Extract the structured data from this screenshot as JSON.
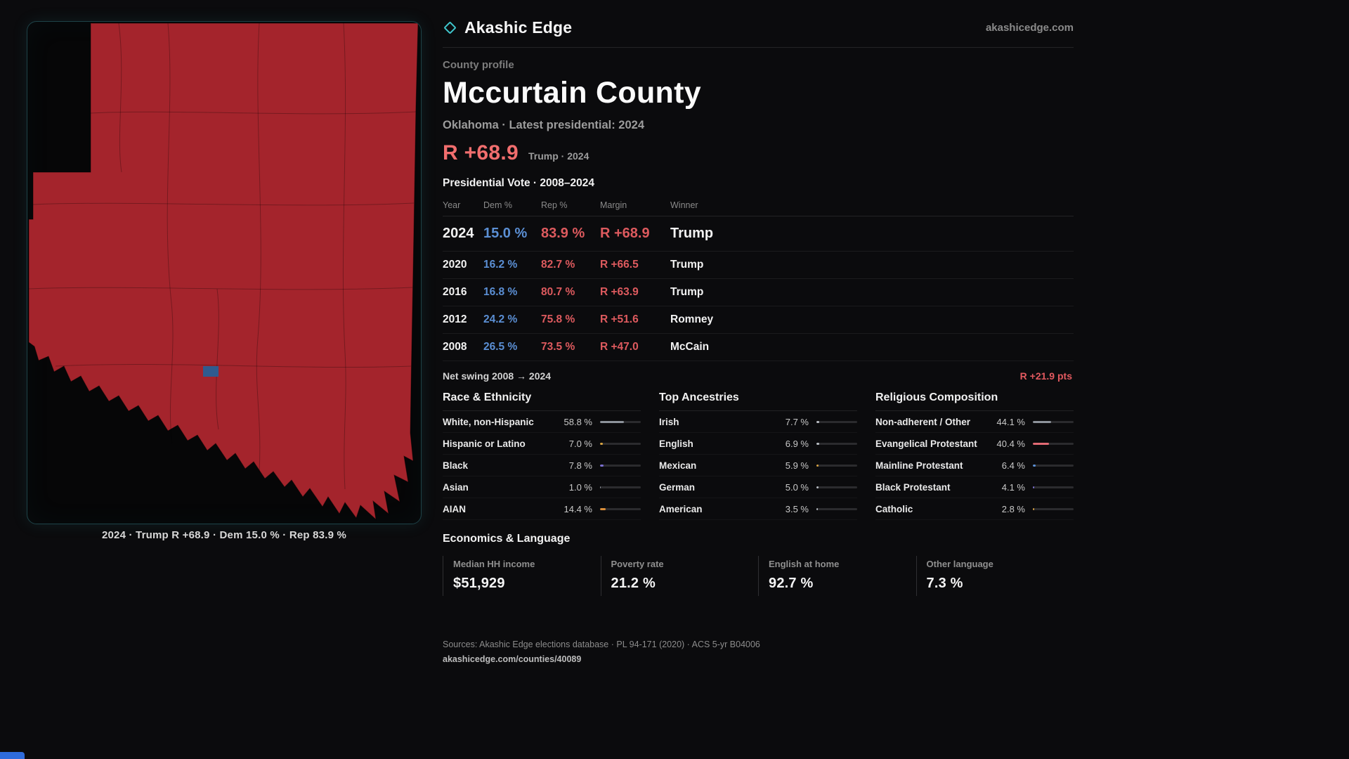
{
  "colors": {
    "accent_teal": "#3fc6cc",
    "dem_blue": "#5b8fd4",
    "rep_red": "#dd5a5e",
    "headline_red": "#f16e6e",
    "map_fill": "#a4242c",
    "map_highlight": "#2f5b8f",
    "corner_accent": "#2e6bdb"
  },
  "brand": {
    "name": "Akashic Edge",
    "domain": "akashicedge.com"
  },
  "map": {
    "fill_color": "#a4242c",
    "highlight_color": "#2f5b8f",
    "caption": "2024 · Trump R +68.9 · Dem 15.0 % · Rep 83.9 %"
  },
  "profile": {
    "eyebrow": "County profile",
    "title": "Mccurtain County",
    "subtitle": "Oklahoma · Latest presidential: 2024",
    "headline_margin": "R +68.9",
    "headline_note": "Trump · 2024"
  },
  "vote_table": {
    "title": "Presidential Vote · 2008–2024",
    "columns": {
      "year": "Year",
      "dem": "Dem %",
      "rep": "Rep %",
      "margin": "Margin",
      "winner": "Winner"
    },
    "rows": [
      {
        "year": "2024",
        "dem": "15.0 %",
        "rep": "83.9 %",
        "margin": "R +68.9",
        "winner": "Trump"
      },
      {
        "year": "2020",
        "dem": "16.2 %",
        "rep": "82.7 %",
        "margin": "R +66.5",
        "winner": "Trump"
      },
      {
        "year": "2016",
        "dem": "16.8 %",
        "rep": "80.7 %",
        "margin": "R +63.9",
        "winner": "Trump"
      },
      {
        "year": "2012",
        "dem": "24.2 %",
        "rep": "75.8 %",
        "margin": "R +51.6",
        "winner": "Romney"
      },
      {
        "year": "2008",
        "dem": "26.5 %",
        "rep": "73.5 %",
        "margin": "R +47.0",
        "winner": "McCain"
      }
    ],
    "net_swing_label": "Net swing 2008 → 2024",
    "net_swing_value": "R +21.9 pts"
  },
  "demographics": {
    "groups": [
      {
        "title": "Race & Ethnicity",
        "rows": [
          {
            "label": "White, non-Hispanic",
            "value": "58.8 %",
            "pct": 58.8,
            "color": "#8d939b"
          },
          {
            "label": "Hispanic or Latino",
            "value": "7.0 %",
            "pct": 7.0,
            "color": "#d9a441"
          },
          {
            "label": "Black",
            "value": "7.8 %",
            "pct": 7.8,
            "color": "#7b6fd0"
          },
          {
            "label": "Asian",
            "value": "1.0 %",
            "pct": 1.0,
            "color": "#9aa0a6"
          },
          {
            "label": "AIAN",
            "value": "14.4 %",
            "pct": 14.4,
            "color": "#d98e3a"
          }
        ]
      },
      {
        "title": "Top Ancestries",
        "rows": [
          {
            "label": "Irish",
            "value": "7.7 %",
            "pct": 7.7,
            "color": "#b9bec4"
          },
          {
            "label": "English",
            "value": "6.9 %",
            "pct": 6.9,
            "color": "#b9bec4"
          },
          {
            "label": "Mexican",
            "value": "5.9 %",
            "pct": 5.9,
            "color": "#d9a441"
          },
          {
            "label": "German",
            "value": "5.0 %",
            "pct": 5.0,
            "color": "#b9bec4"
          },
          {
            "label": "American",
            "value": "3.5 %",
            "pct": 3.5,
            "color": "#b9bec4"
          }
        ]
      },
      {
        "title": "Religious Composition",
        "rows": [
          {
            "label": "Non-adherent / Other",
            "value": "44.1 %",
            "pct": 44.1,
            "color": "#8d939b"
          },
          {
            "label": "Evangelical Protestant",
            "value": "40.4 %",
            "pct": 40.4,
            "color": "#e26a74"
          },
          {
            "label": "Mainline Protestant",
            "value": "6.4 %",
            "pct": 6.4,
            "color": "#5a8fd6"
          },
          {
            "label": "Black Protestant",
            "value": "4.1 %",
            "pct": 4.1,
            "color": "#7b6fd0"
          },
          {
            "label": "Catholic",
            "value": "2.8 %",
            "pct": 2.8,
            "color": "#d9a441"
          }
        ]
      }
    ]
  },
  "economics": {
    "title": "Economics & Language",
    "stats": [
      {
        "label": "Median HH income",
        "value": "$51,929"
      },
      {
        "label": "Poverty rate",
        "value": "21.2 %"
      },
      {
        "label": "English at home",
        "value": "92.7 %"
      },
      {
        "label": "Other language",
        "value": "7.3 %"
      }
    ]
  },
  "footer": {
    "sources": "Sources: Akashic Edge elections database · PL 94-171 (2020) · ACS 5-yr B04006",
    "permalink": "akashicedge.com/counties/40089"
  }
}
